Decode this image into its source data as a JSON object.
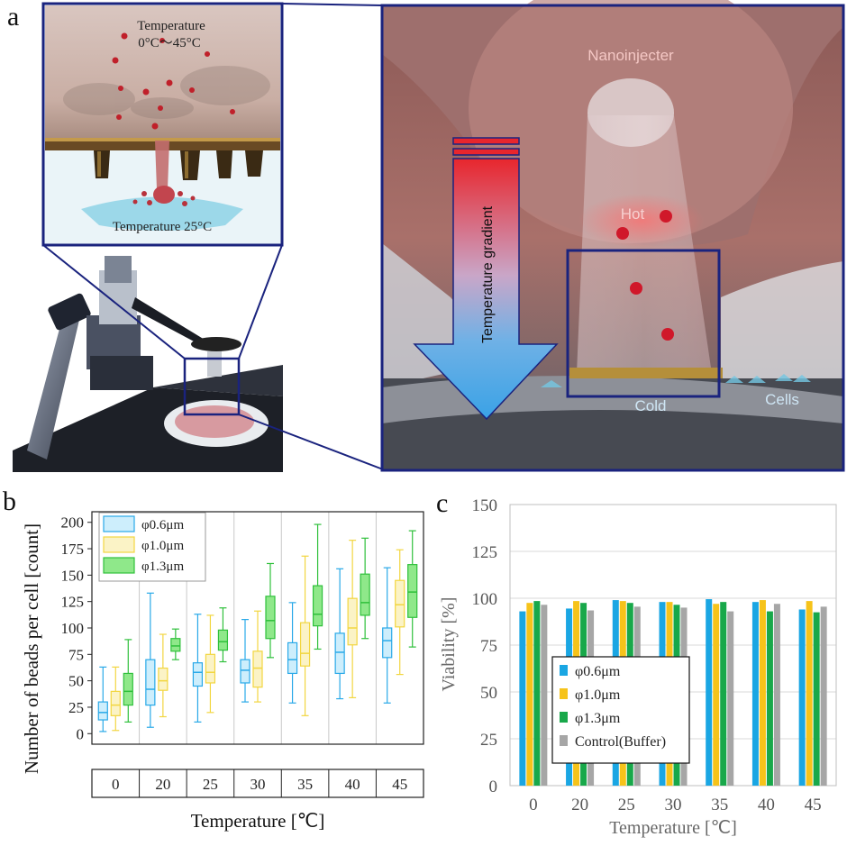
{
  "panels": {
    "a": "a",
    "b": "b",
    "c": "c"
  },
  "panel_a": {
    "inset_top_label": "Temperature",
    "inset_range_label": "0°C～45°C",
    "inset_bottom_label": "Temperature 25°C",
    "nanoinjecter_label": "Nanoinjecter",
    "gradient_label": "Temperature gradient",
    "hot_label": "Hot",
    "cold_label": "Cold",
    "cells_label": "Cells",
    "colors": {
      "frame": "#1a237e",
      "bead": "#c0202a",
      "hot": "#e53935",
      "cold": "#4fa3e0"
    }
  },
  "chart_data": [
    {
      "type": "box",
      "ylabel": "Number of beads per cell [count]",
      "xlabel": "Temperature [℃]",
      "categories": [
        "0",
        "20",
        "25",
        "30",
        "35",
        "40",
        "45"
      ],
      "ylim": [
        -10,
        210
      ],
      "yticks": [
        0,
        25,
        50,
        75,
        100,
        125,
        150,
        175,
        200
      ],
      "series": [
        {
          "name": "φ0.6μm",
          "color": "#29a9e8",
          "fill": "#cdeefc",
          "boxes": [
            {
              "min": 2,
              "q1": 13,
              "median": 20,
              "q3": 30,
              "max": 63
            },
            {
              "min": 6,
              "q1": 27,
              "median": 42,
              "q3": 70,
              "max": 133
            },
            {
              "min": 11,
              "q1": 45,
              "median": 58,
              "q3": 67,
              "max": 113
            },
            {
              "min": 30,
              "q1": 48,
              "median": 60,
              "q3": 70,
              "max": 108
            },
            {
              "min": 29,
              "q1": 57,
              "median": 70,
              "q3": 86,
              "max": 124
            },
            {
              "min": 33,
              "q1": 57,
              "median": 77,
              "q3": 95,
              "max": 156
            },
            {
              "min": 29,
              "q1": 72,
              "median": 88,
              "q3": 100,
              "max": 157
            }
          ]
        },
        {
          "name": "φ1.0μm",
          "color": "#f2d640",
          "fill": "#fbf3c6",
          "boxes": [
            {
              "min": 3,
              "q1": 17,
              "median": 27,
              "q3": 40,
              "max": 63
            },
            {
              "min": 16,
              "q1": 41,
              "median": 50,
              "q3": 62,
              "max": 94
            },
            {
              "min": 20,
              "q1": 48,
              "median": 58,
              "q3": 75,
              "max": 112
            },
            {
              "min": 30,
              "q1": 44,
              "median": 62,
              "q3": 78,
              "max": 116
            },
            {
              "min": 17,
              "q1": 64,
              "median": 76,
              "q3": 105,
              "max": 168
            },
            {
              "min": 34,
              "q1": 84,
              "median": 100,
              "q3": 128,
              "max": 183
            },
            {
              "min": 56,
              "q1": 101,
              "median": 122,
              "q3": 145,
              "max": 174
            }
          ]
        },
        {
          "name": "φ1.3μm",
          "color": "#2fc03b",
          "fill": "#8fe88a",
          "boxes": [
            {
              "min": 11,
              "q1": 27,
              "median": 40,
              "q3": 57,
              "max": 89
            },
            {
              "min": 70,
              "q1": 78,
              "median": 83,
              "q3": 90,
              "max": 99
            },
            {
              "min": 68,
              "q1": 79,
              "median": 87,
              "q3": 98,
              "max": 119
            },
            {
              "min": 72,
              "q1": 90,
              "median": 107,
              "q3": 130,
              "max": 161
            },
            {
              "min": 80,
              "q1": 102,
              "median": 113,
              "q3": 140,
              "max": 198
            },
            {
              "min": 90,
              "q1": 112,
              "median": 124,
              "q3": 151,
              "max": 185
            },
            {
              "min": 82,
              "q1": 110,
              "median": 134,
              "q3": 160,
              "max": 192
            }
          ]
        }
      ],
      "legend": "top-left"
    },
    {
      "type": "bar",
      "ylabel": "Viability [%]",
      "xlabel": "Temperature [℃]",
      "categories": [
        "0",
        "20",
        "25",
        "30",
        "35",
        "40",
        "45"
      ],
      "ylim": [
        0,
        150
      ],
      "yticks": [
        0,
        25,
        50,
        75,
        100,
        125,
        150
      ],
      "grid": true,
      "series": [
        {
          "name": "φ0.6μm",
          "color": "#1aa6e3",
          "values": [
            93,
            94.5,
            99,
            98,
            99.5,
            98,
            94
          ]
        },
        {
          "name": "φ1.0μm",
          "color": "#f6c31a",
          "values": [
            97.5,
            98.5,
            98.5,
            98,
            97,
            99,
            98.5
          ]
        },
        {
          "name": "φ1.3μm",
          "color": "#18a84a",
          "values": [
            98.5,
            97.5,
            97.5,
            96.5,
            98,
            93,
            92.5
          ]
        },
        {
          "name": "Control(Buffer)",
          "color": "#a6a6a6",
          "values": [
            96.5,
            93.5,
            95.5,
            95,
            93,
            97,
            95.5
          ]
        }
      ],
      "legend": "bottom-center"
    }
  ]
}
